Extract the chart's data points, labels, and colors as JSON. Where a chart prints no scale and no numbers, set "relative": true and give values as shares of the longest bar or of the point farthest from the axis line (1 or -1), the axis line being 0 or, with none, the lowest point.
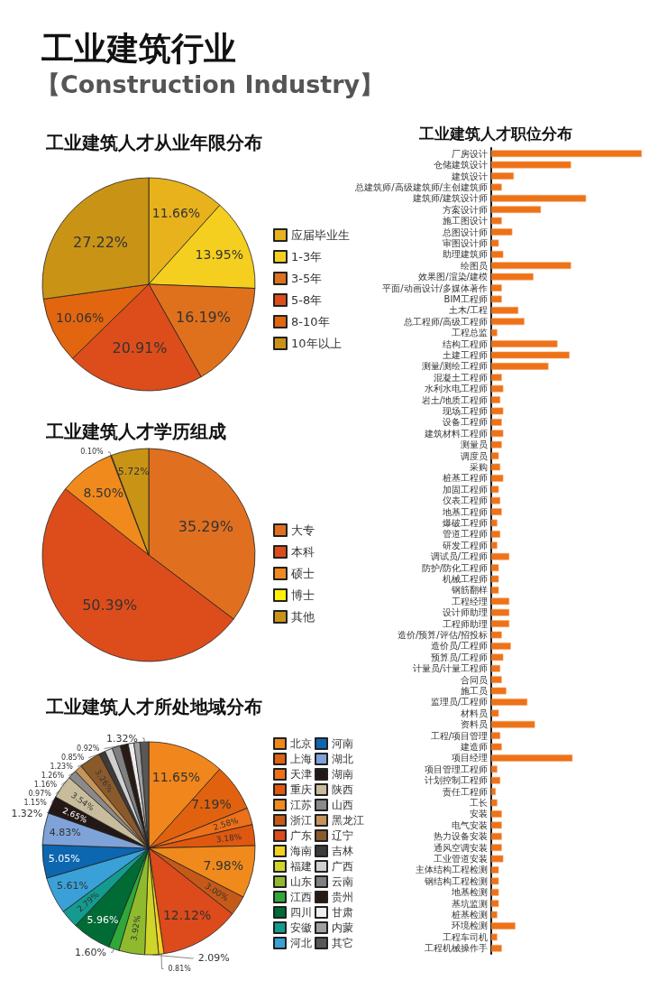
{
  "chart_data": [
    {
      "type": "other",
      "title": "工业建筑行业",
      "subtitle": "【Construction Industry】"
    },
    {
      "type": "pie",
      "title": "工业建筑人才从业年限分布",
      "legend": "right",
      "categories": [
        "应届毕业生",
        "1-3年",
        "3-5年",
        "5-8年",
        "8-10年",
        "10年以上"
      ],
      "values": [
        11.66,
        13.95,
        16.19,
        20.91,
        10.06,
        27.22
      ],
      "value_labels": [
        "11.66%",
        "13.95%",
        "16.19%",
        "20.91%",
        "10.06%",
        "27.22%"
      ],
      "colors": [
        "#e8b21c",
        "#f5cf1f",
        "#e0711c",
        "#dd4d1b",
        "#e2650f",
        "#c99416"
      ]
    },
    {
      "type": "pie",
      "title": "工业建筑人才学历组成",
      "legend": "right",
      "categories": [
        "大专",
        "本科",
        "硕士",
        "博士",
        "其他"
      ],
      "values": [
        35.29,
        50.39,
        8.5,
        0.1,
        5.72
      ],
      "value_labels": [
        "35.29%",
        "50.39%",
        "8.50%",
        "0.10%",
        "5.72%"
      ],
      "colors": [
        "#e07020",
        "#dd4d1b",
        "#f08a1c",
        "#fff200",
        "#c99416"
      ]
    },
    {
      "type": "pie",
      "title": "工业建筑人才所处地域分布",
      "legend": "right",
      "categories": [
        "北京",
        "上海",
        "天津",
        "重庆",
        "江苏",
        "浙江",
        "广东",
        "海南",
        "福建",
        "山东",
        "江西",
        "四川",
        "安徽",
        "河北",
        "河南",
        "湖北",
        "湖南",
        "陕西",
        "山西",
        "黑龙江",
        "辽宁",
        "吉林",
        "广西",
        "云南",
        "贵州",
        "甘肃",
        "内蒙",
        "其它"
      ],
      "values": [
        11.65,
        7.19,
        2.58,
        3.18,
        7.98,
        3.0,
        12.12,
        0.81,
        2.09,
        3.92,
        1.6,
        5.96,
        2.79,
        5.61,
        5.05,
        4.83,
        2.65,
        3.54,
        1.32,
        1.15,
        3.26,
        0.97,
        1.16,
        1.26,
        1.23,
        0.85,
        0.92,
        1.32
      ],
      "value_labels": [
        "11.65%",
        "7.19%",
        "2.58%",
        "3.18%",
        "7.98%",
        "3.00%",
        "12.12%",
        "0.81%",
        "2.09%",
        "3.92%",
        "1.60%",
        "5.96%",
        "2.79%",
        "5.61%",
        "5.05%",
        "4.83%",
        "2.65%",
        "3.54%",
        "1.32%",
        "1.15%",
        "3.26%",
        "0.97%",
        "1.16%",
        "1.26%",
        "1.23%",
        "0.85%",
        "0.92%",
        "1.32%"
      ],
      "colors": [
        "#f0861c",
        "#e0620f",
        "#ee7018",
        "#e0580f",
        "#f08a1c",
        "#c55a18",
        "#dd4a1b",
        "#f5cf1f",
        "#cfd62a",
        "#8fba2e",
        "#2fa83a",
        "#006b35",
        "#139b8f",
        "#3aa0d8",
        "#0d66b0",
        "#7fa3d8",
        "#231815",
        "#c8bc9c",
        "#8a8a8a",
        "#c4955a",
        "#8b5a2b",
        "#3e3a39",
        "#d0d0d0",
        "#808080",
        "#2a1a14",
        "#eeeeee",
        "#a0a0a0",
        "#595757"
      ]
    },
    {
      "type": "bar",
      "orientation": "horizontal",
      "relative": true,
      "title": "工业建筑人才职位分布",
      "color": "#ee7218",
      "categories": [
        "厂房设计",
        "仓储建筑设计",
        "建筑设计",
        "总建筑师/高级建筑师/主创建筑师",
        "建筑师/建筑设计师",
        "方案设计师",
        "施工图设计",
        "总图设计师",
        "审图设计师",
        "助理建筑师",
        "绘图员",
        "效果图/渲染/建模",
        "平面/动画设计/多媒体著作",
        "BIM工程师",
        "土木/工程",
        "总工程师/高级工程师",
        "工程总监",
        "结构工程师",
        "土建工程师",
        "测量/测绘工程师",
        "混凝土工程师",
        "水利水电工程师",
        "岩土/地质工程师",
        "现场工程师",
        "设备工程师",
        "建筑材料工程师",
        "测量员",
        "调度员",
        "采购",
        "桩基工程师",
        "加固工程师",
        "仪表工程师",
        "地基工程师",
        "爆破工程师",
        "管道工程师",
        "研发工程师",
        "调试员/工程师",
        "防护/防化工程师",
        "机械工程师",
        "钢筋翻样",
        "工程经理",
        "设计师助理",
        "工程师助理",
        "造价/预算/评估/招投标",
        "造价员/工程师",
        "预算员/工程师",
        "计量员/计量工程师",
        "合同员",
        "施工员",
        "监理员/工程师",
        "材料员",
        "资料员",
        "工程/项目管理",
        "建造师",
        "项目经理",
        "项目管理工程师",
        "计划控制工程师",
        "责任工程师",
        "工长",
        "安装",
        "电气安装",
        "热力设备安装",
        "通风空调安装",
        "工业管道安装",
        "主体结构工程检测",
        "钢结构工程检测",
        "地基检测",
        "基坑监测",
        "桩基检测",
        "环境检测",
        "工程车司机",
        "工程机械操作手"
      ],
      "values": [
        1.0,
        0.53,
        0.15,
        0.07,
        0.63,
        0.33,
        0.07,
        0.14,
        0.05,
        0.08,
        0.53,
        0.28,
        0.07,
        0.07,
        0.18,
        0.22,
        0.04,
        0.44,
        0.52,
        0.38,
        0.07,
        0.08,
        0.06,
        0.08,
        0.07,
        0.08,
        0.07,
        0.05,
        0.06,
        0.08,
        0.05,
        0.06,
        0.07,
        0.04,
        0.06,
        0.04,
        0.12,
        0.05,
        0.05,
        0.05,
        0.12,
        0.12,
        0.12,
        0.07,
        0.13,
        0.08,
        0.06,
        0.07,
        0.1,
        0.24,
        0.05,
        0.29,
        0.06,
        0.07,
        0.54,
        0.04,
        0.06,
        0.03,
        0.04,
        0.07,
        0.07,
        0.07,
        0.07,
        0.08,
        0.05,
        0.05,
        0.05,
        0.05,
        0.04,
        0.16,
        0.04,
        0.07
      ]
    }
  ]
}
